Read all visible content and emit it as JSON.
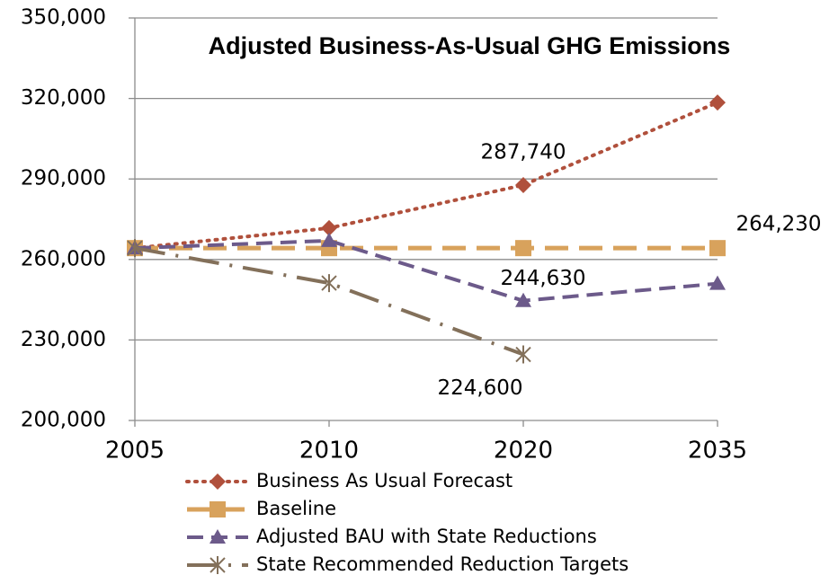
{
  "chart_data": {
    "type": "line",
    "title": "Adjusted Business-As-Usual GHG Emissions",
    "categories": [
      "2005",
      "2010",
      "2020",
      "2035"
    ],
    "series": [
      {
        "name": "Business As Usual Forecast",
        "color": "#b0503c",
        "values": [
          264230,
          271700,
          287740,
          318500
        ],
        "value_labels": [
          null,
          null,
          "287,740",
          null
        ]
      },
      {
        "name": "Baseline",
        "color": "#d8a25c",
        "values": [
          264230,
          264230,
          264230,
          264230
        ],
        "value_labels": [
          null,
          null,
          null,
          "264,230"
        ]
      },
      {
        "name": "Adjusted BAU with State Reductions",
        "color": "#6c5a8a",
        "values": [
          264230,
          267000,
          244630,
          251000
        ],
        "value_labels": [
          null,
          null,
          "244,630",
          null
        ]
      },
      {
        "name": "State Recommended Reduction Targets",
        "color": "#83705a",
        "values": [
          264230,
          251200,
          224600,
          null
        ],
        "value_labels": [
          null,
          null,
          "224,600",
          null
        ]
      }
    ],
    "ylim": [
      200000,
      350000
    ],
    "yticks": [
      {
        "value": 200000,
        "label": "200,000"
      },
      {
        "value": 230000,
        "label": "230,000"
      },
      {
        "value": 260000,
        "label": "260,000"
      },
      {
        "value": 290000,
        "label": "290,000"
      },
      {
        "value": 320000,
        "label": "320,000"
      },
      {
        "value": 350000,
        "label": "350,000"
      }
    ],
    "grid": true
  }
}
